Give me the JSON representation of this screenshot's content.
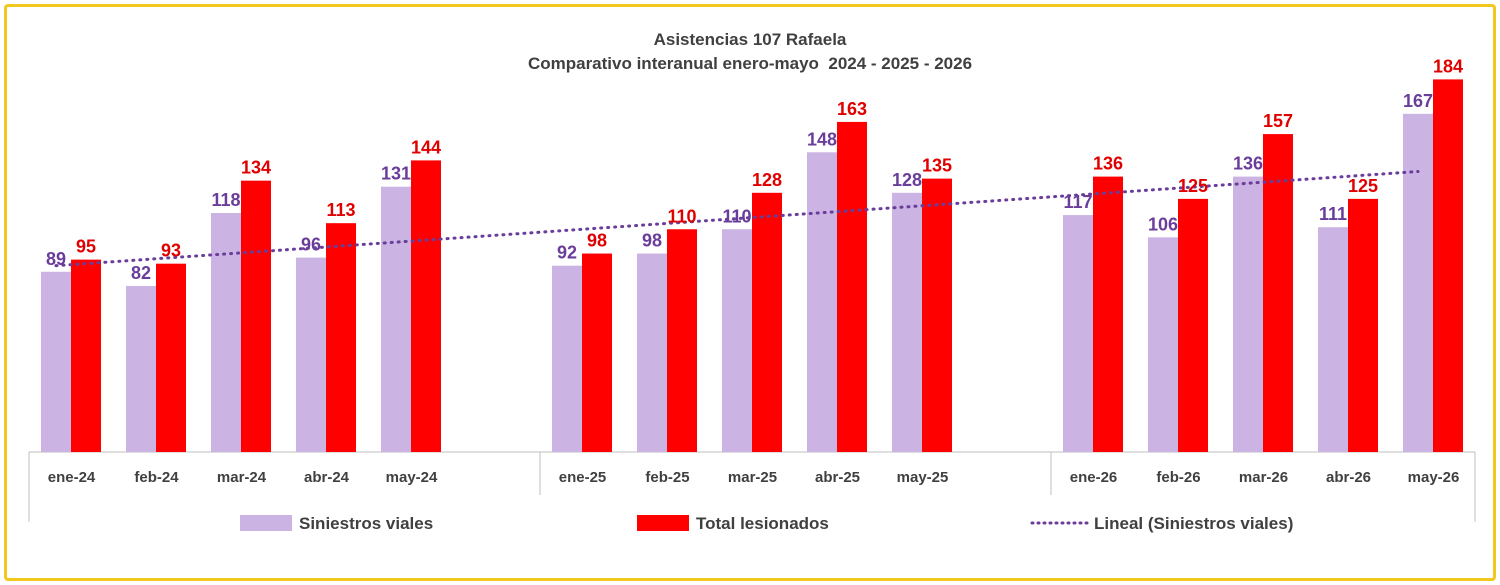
{
  "chart_data": {
    "type": "bar",
    "title": "Asistencias 107 Rafaela",
    "subtitle": "Comparativo interanual enero-mayo  2024 - 2025 - 2026",
    "groups": [
      [
        "ene-24",
        "feb-24",
        "mar-24",
        "abr-24",
        "may-24"
      ],
      [
        "ene-25",
        "feb-25",
        "mar-25",
        "abr-25",
        "may-25"
      ],
      [
        "ene-26",
        "feb-26",
        "mar-26",
        "abr-26",
        "may-26"
      ]
    ],
    "categories": [
      "ene-24",
      "feb-24",
      "mar-24",
      "abr-24",
      "may-24",
      "ene-25",
      "feb-25",
      "mar-25",
      "abr-25",
      "may-25",
      "ene-26",
      "feb-26",
      "mar-26",
      "abr-26",
      "may-26"
    ],
    "series": [
      {
        "name": "Siniestros viales",
        "color": "#cbb3e3",
        "label_color": "#6a3d9a",
        "values": [
          89,
          82,
          118,
          96,
          131,
          92,
          98,
          110,
          148,
          128,
          117,
          106,
          136,
          111,
          167
        ]
      },
      {
        "name": "Total lesionados",
        "color": "#ff0000",
        "label_color": "#e00000",
        "values": [
          95,
          93,
          134,
          113,
          144,
          98,
          110,
          128,
          163,
          135,
          136,
          125,
          157,
          125,
          184
        ]
      }
    ],
    "trendline": {
      "name": "Lineal (Siniestros viales)",
      "color": "#6a3d9a",
      "style": "dotted",
      "of_series": "Siniestros viales"
    },
    "ylim": [
      0,
      200
    ],
    "grid": false,
    "legend": "bottom"
  }
}
